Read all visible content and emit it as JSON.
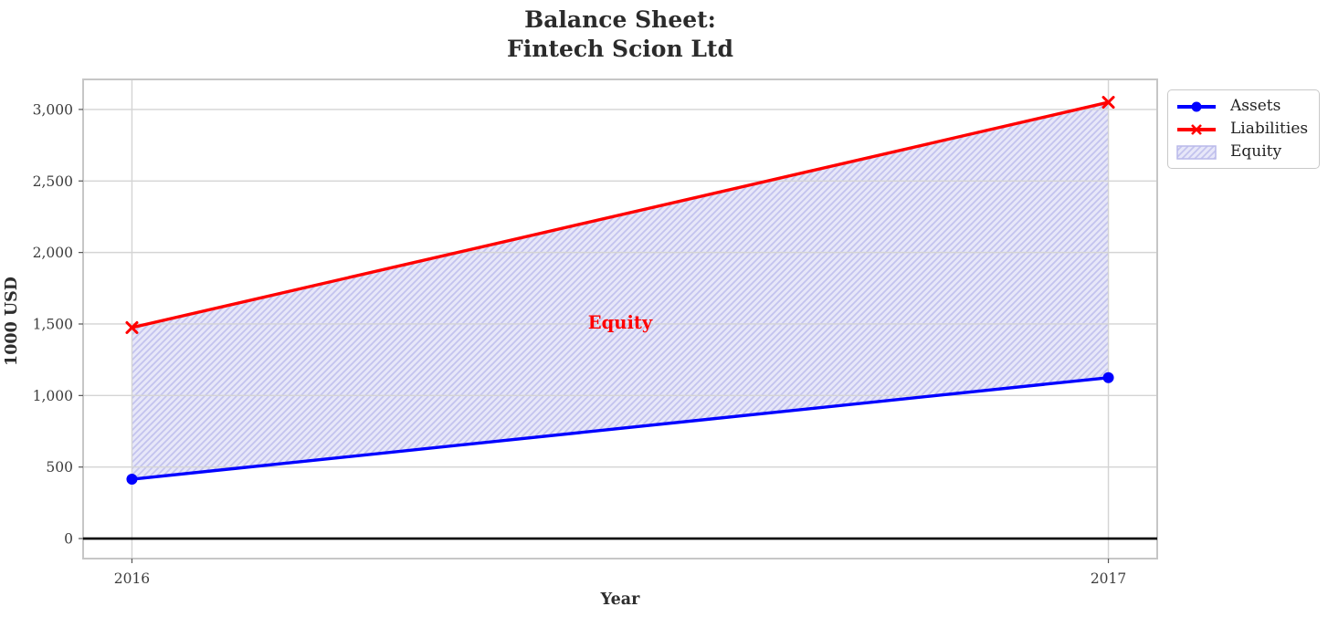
{
  "title": {
    "line1": "Balance Sheet:",
    "line2": "Fintech Scion Ltd"
  },
  "chart_data": {
    "type": "line",
    "title": "Balance Sheet: Fintech Scion Ltd",
    "x": [
      2016,
      2017
    ],
    "xtick_labels": [
      "2016",
      "2017"
    ],
    "series": [
      {
        "name": "Assets",
        "values": [
          415,
          1125
        ],
        "color": "#0000ff",
        "marker": "circle",
        "line_width": 3.4
      },
      {
        "name": "Liabilities",
        "values": [
          1475,
          3050
        ],
        "color": "#ff0000",
        "marker": "x",
        "line_width": 3.4
      }
    ],
    "fill_between": {
      "name": "Equity",
      "upper_series": "Liabilities",
      "lower_series": "Assets",
      "face_color": "#e7e7f9",
      "hatch_color": "#c3c3ee",
      "hatch": "//"
    },
    "annotation": {
      "text": "Equity",
      "x": 2016.5,
      "y": 1500,
      "color": "#ff0000"
    },
    "xlabel": "Year",
    "ylabel": "1000 USD",
    "yticks": [
      0,
      500,
      1000,
      1500,
      2000,
      2500,
      3000
    ],
    "ytick_labels": [
      "0",
      "500",
      "1,000",
      "1,500",
      "2,000",
      "2,500",
      "3,000"
    ],
    "xlim": [
      2015.95,
      2017.05
    ],
    "ylim": [
      -140,
      3210
    ],
    "grid": true,
    "zero_line": {
      "y": 0,
      "color": "#000000"
    },
    "legend": {
      "position": "outside-top-right",
      "entries": [
        {
          "label": "Assets",
          "swatch": "line-circle",
          "color": "#0000ff"
        },
        {
          "label": "Liabilities",
          "swatch": "line-x",
          "color": "#ff0000"
        },
        {
          "label": "Equity",
          "swatch": "hatched-patch",
          "color": "#e7e7f9"
        }
      ]
    },
    "style": {
      "grid_color": "#d4d4d4",
      "border_color": "#c6c6c6",
      "tick_color": "#555555",
      "text_color": "#3d3d3d",
      "background": "#ffffff"
    }
  }
}
